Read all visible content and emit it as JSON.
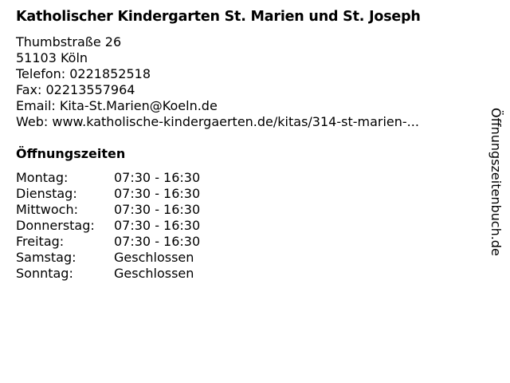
{
  "title": "Katholischer Kindergarten St. Marien und St. Joseph",
  "info": {
    "street": "Thumbstraße 26",
    "city": "51103 Köln",
    "phone": "Telefon: 0221852518",
    "fax": "Fax: 02213557964",
    "email": "Email: Kita-St.Marien@Koeln.de",
    "web": "Web: www.katholische-kindergaerten.de/kitas/314-st-marien-..."
  },
  "hours_heading": "Öffnungszeiten",
  "hours": [
    {
      "day": "Montag:",
      "time": "07:30 - 16:30"
    },
    {
      "day": "Dienstag:",
      "time": "07:30 - 16:30"
    },
    {
      "day": "Mittwoch:",
      "time": "07:30 - 16:30"
    },
    {
      "day": "Donnerstag:",
      "time": "07:30 - 16:30"
    },
    {
      "day": "Freitag:",
      "time": "07:30 - 16:30"
    },
    {
      "day": "Samstag:",
      "time": "Geschlossen"
    },
    {
      "day": "Sonntag:",
      "time": "Geschlossen"
    }
  ],
  "watermark": "Öffnungszeitenbuch.de"
}
